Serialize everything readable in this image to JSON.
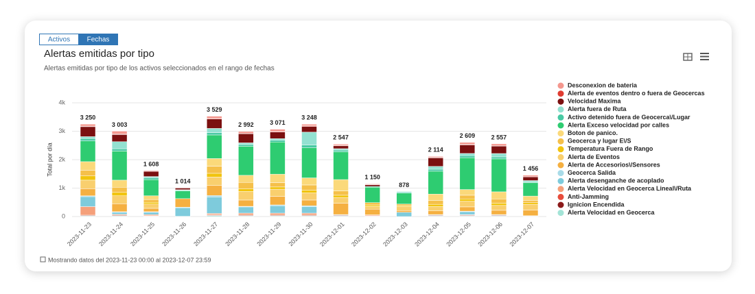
{
  "tabs": [
    "Activos",
    "Fechas"
  ],
  "footer": "Mostrando datos del 2023-11-23 00:00 al 2023-12-07 23:59",
  "chart_data": {
    "type": "bar",
    "stacked": true,
    "title": "Alertas emitidas por tipo",
    "subtitle": "Alertas emitidas por tipo de los activos seleccionados en el rango de fechas",
    "y_label": "Total por día",
    "categories": [
      "2023-11-23",
      "2023-11-24",
      "2023-11-25",
      "2023-11-26",
      "2023-11-27",
      "2023-11-28",
      "2023-11-29",
      "2023-11-30",
      "2023-12-01",
      "2023-12-02",
      "2023-12-03",
      "2023-12-04",
      "2023-12-05",
      "2023-12-06",
      "2023-12-07"
    ],
    "ylim": [
      0,
      4000
    ],
    "yticks": [
      0,
      {
        "value": 1000,
        "label": "1k"
      },
      {
        "value": 2000,
        "label": "2k"
      },
      {
        "value": 3000,
        "label": "3k"
      },
      {
        "value": 4000,
        "label": "4k"
      }
    ],
    "grid": true,
    "legend": "right",
    "totals": [
      3250,
      3003,
      1608,
      1014,
      3529,
      2992,
      3071,
      3248,
      2547,
      1150,
      878,
      2114,
      2609,
      2557,
      1456
    ],
    "totals_labels": [
      "3 250",
      "3 003",
      "1 608",
      "1 014",
      "3 529",
      "2 992",
      "3 071",
      "3 248",
      "2 547",
      "1 150",
      "878",
      "2 114",
      "2 609",
      "2 557",
      "1 456"
    ],
    "series": [
      {
        "name": "Desconexion de bateria",
        "color": "#f4978e",
        "values": [
          70,
          100,
          0,
          0,
          80,
          60,
          80,
          60,
          40,
          20,
          0,
          30,
          70,
          60,
          40
        ]
      },
      {
        "name": "Alerta de eventos dentro o fuera de Geocercas",
        "color": "#e03c31",
        "values": [
          20,
          20,
          20,
          10,
          20,
          20,
          20,
          20,
          20,
          10,
          0,
          20,
          20,
          20,
          20
        ]
      },
      {
        "name": "Velocidad Maxima",
        "color": "#7b1010",
        "values": [
          350,
          250,
          180,
          60,
          330,
          320,
          230,
          200,
          100,
          60,
          0,
          300,
          300,
          260,
          130
        ]
      },
      {
        "name": "Alerta fuera de Ruta",
        "color": "#93e1d1",
        "values": [
          70,
          250,
          50,
          20,
          150,
          60,
          60,
          450,
          50,
          0,
          50,
          100,
          80,
          120,
          50
        ]
      },
      {
        "name": "Activo detenido fuera de Geocerca\\/Lugar",
        "color": "#48c9a3",
        "values": [
          80,
          80,
          60,
          20,
          80,
          60,
          60,
          100,
          60,
          30,
          0,
          70,
          70,
          70,
          30
        ]
      },
      {
        "name": "Alerta Exceso velocidad por calles",
        "color": "#2ecc71",
        "values": [
          730,
          1023,
          568,
          274,
          829,
          1022,
          1131,
          1058,
          977,
          540,
          388,
          804,
          1119,
          1157,
          466
        ]
      },
      {
        "name": "Boton de panico.",
        "color": "#fbd97a",
        "values": [
          300,
          250,
          130,
          0,
          270,
          250,
          300,
          250,
          400,
          0,
          0,
          230,
          200,
          250,
          150
        ]
      },
      {
        "name": "Geocerca y lugar E\\/S",
        "color": "#f5c04a",
        "values": [
          200,
          180,
          100,
          0,
          250,
          220,
          150,
          180,
          150,
          80,
          50,
          130,
          130,
          150,
          80
        ]
      },
      {
        "name": "Temperatura Fuera de Rango",
        "color": "#f1c40f",
        "values": [
          150,
          120,
          60,
          0,
          130,
          100,
          80,
          100,
          80,
          50,
          30,
          80,
          80,
          80,
          60
        ]
      },
      {
        "name": "Alerta de Eventos",
        "color": "#f9cf6e",
        "values": [
          300,
          280,
          150,
          0,
          300,
          300,
          250,
          250,
          200,
          100,
          150,
          150,
          200,
          170,
          200
        ]
      },
      {
        "name": "Alerta de Accesorios\\/Sensores",
        "color": "#f5b041",
        "values": [
          250,
          280,
          120,
          300,
          350,
          220,
          300,
          200,
          400,
          200,
          60,
          130,
          150,
          150,
          200
        ]
      },
      {
        "name": "Geocerca Salida",
        "color": "#a8dbe8",
        "values": [
          30,
          20,
          20,
          20,
          50,
          20,
          30,
          30,
          20,
          10,
          0,
          20,
          20,
          20,
          10
        ]
      },
      {
        "name": "Alerta desenganche de acoplado",
        "color": "#7ecbdc",
        "values": [
          350,
          70,
          80,
          300,
          580,
          220,
          260,
          230,
          0,
          0,
          150,
          0,
          100,
          0,
          0
        ]
      },
      {
        "name": "Alerta Velocidad en Geocerca Lineal\\/Ruta",
        "color": "#f5a07a",
        "values": [
          300,
          30,
          40,
          0,
          50,
          70,
          70,
          70,
          0,
          30,
          0,
          0,
          20,
          0,
          0
        ]
      },
      {
        "name": "Anti-Jamming",
        "color": "#e74c3c",
        "values": [
          10,
          10,
          10,
          0,
          10,
          10,
          10,
          10,
          10,
          0,
          0,
          10,
          10,
          10,
          0
        ]
      },
      {
        "name": "Ignicion Encendida",
        "color": "#8b1a1a",
        "values": [
          20,
          20,
          10,
          10,
          20,
          20,
          20,
          20,
          20,
          10,
          0,
          20,
          20,
          20,
          10
        ]
      },
      {
        "name": "Alerta Velocidad en Geocerca",
        "color": "#a3e4d7",
        "values": [
          20,
          20,
          10,
          0,
          30,
          20,
          20,
          20,
          20,
          10,
          0,
          20,
          20,
          20,
          10
        ]
      }
    ]
  }
}
